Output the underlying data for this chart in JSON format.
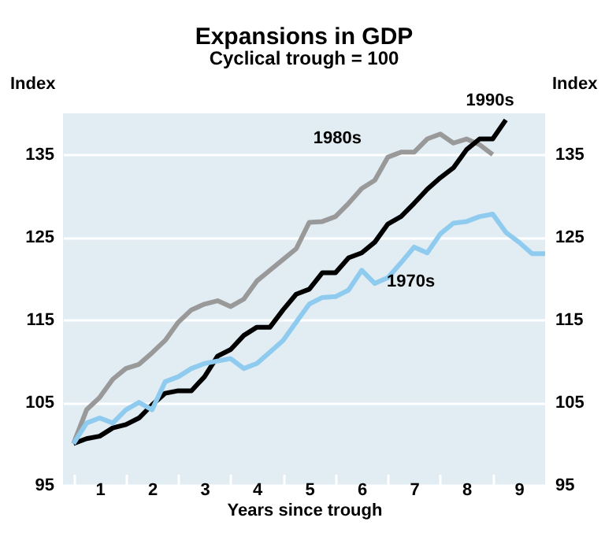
{
  "chart_data": {
    "type": "line",
    "title": "Expansions in GDP",
    "subtitle": "Cyclical trough = 100",
    "xlabel": "Years since trough",
    "ylabel": "Index",
    "y2label": "Index",
    "x": [
      0,
      0.25,
      0.5,
      0.75,
      1,
      1.25,
      1.5,
      1.75,
      2,
      2.25,
      2.5,
      2.75,
      3,
      3.25,
      3.5,
      3.75,
      4,
      4.25,
      4.5,
      4.75,
      5,
      5.25,
      5.5,
      5.75,
      6,
      6.25,
      6.5,
      6.75,
      7,
      7.25,
      7.5,
      7.75,
      8,
      8.25,
      8.5,
      8.75,
      9
    ],
    "series": [
      {
        "name": "1980s",
        "color": "#999999",
        "x": [
          0,
          0.25,
          0.5,
          0.75,
          1,
          1.25,
          1.5,
          1.75,
          2,
          2.25,
          2.5,
          2.75,
          3,
          3.25,
          3.5,
          3.75,
          4,
          4.25,
          4.5,
          4.75,
          5,
          5.25,
          5.5,
          5.75,
          6,
          6.25,
          6.5,
          6.75,
          7,
          7.25,
          7.5,
          7.75,
          8
        ],
        "values": [
          100,
          104.1,
          105.6,
          107.8,
          109.1,
          109.6,
          111,
          112.5,
          114.7,
          116.2,
          116.9,
          117.3,
          116.6,
          117.5,
          119.7,
          121,
          122.3,
          123.6,
          126.8,
          126.9,
          127.5,
          129.1,
          130.9,
          131.9,
          134.7,
          135.3,
          135.3,
          136.9,
          137.5,
          136.4,
          136.9,
          136.2,
          135
        ]
      },
      {
        "name": "1990s",
        "color": "#000000",
        "x": [
          0,
          0.25,
          0.5,
          0.75,
          1,
          1.25,
          1.5,
          1.75,
          2,
          2.25,
          2.5,
          2.75,
          3,
          3.25,
          3.5,
          3.75,
          4,
          4.25,
          4.5,
          4.75,
          5,
          5.25,
          5.5,
          5.75,
          6,
          6.25,
          6.5,
          6.75,
          7,
          7.25,
          7.5,
          7.75,
          8,
          8.25
        ],
        "values": [
          100,
          100.6,
          100.9,
          101.9,
          102.3,
          103.1,
          104.7,
          106.1,
          106.4,
          106.4,
          108.1,
          110.6,
          111.4,
          113.1,
          114.1,
          114.1,
          116.2,
          118.1,
          118.7,
          120.7,
          120.7,
          122.5,
          123.1,
          124.4,
          126.6,
          127.5,
          129.1,
          130.8,
          132.2,
          133.4,
          135.6,
          136.9,
          136.9,
          139.2
        ]
      },
      {
        "name": "1970s",
        "color": "#8ecbee",
        "values": [
          100,
          102.5,
          103.1,
          102.5,
          104.1,
          105,
          104.1,
          107.5,
          108.1,
          109.1,
          109.7,
          110,
          110.3,
          109.1,
          109.7,
          111.1,
          112.5,
          114.7,
          116.9,
          117.7,
          117.8,
          118.6,
          121,
          119.4,
          120.1,
          121.9,
          123.8,
          123.1,
          125.4,
          126.7,
          126.9,
          127.5,
          127.8,
          125.6,
          124.4,
          123,
          123
        ]
      }
    ],
    "xlim": [
      -0.2,
      9
    ],
    "xticks": [
      {
        "value": 0,
        "label": null
      },
      {
        "value": 0.5,
        "label": "1"
      },
      {
        "value": 1,
        "label": null
      },
      {
        "value": 1.5,
        "label": "2"
      },
      {
        "value": 2,
        "label": null
      },
      {
        "value": 2.5,
        "label": "3"
      },
      {
        "value": 3,
        "label": null
      },
      {
        "value": 3.5,
        "label": "4"
      },
      {
        "value": 4,
        "label": null
      },
      {
        "value": 4.5,
        "label": "5"
      },
      {
        "value": 5,
        "label": null
      },
      {
        "value": 5.5,
        "label": "6"
      },
      {
        "value": 6,
        "label": null
      },
      {
        "value": 6.5,
        "label": "7"
      },
      {
        "value": 7,
        "label": null
      },
      {
        "value": 7.5,
        "label": "8"
      },
      {
        "value": 8,
        "label": null
      },
      {
        "value": 8.5,
        "label": "9"
      }
    ],
    "ylim": [
      95,
      140
    ],
    "yticks": [
      95,
      105,
      115,
      125,
      135
    ],
    "y2lim": [
      95,
      140
    ],
    "y2ticks": [
      95,
      105,
      115,
      125,
      135
    ],
    "grid": "y",
    "legend": false,
    "line_style": "solid",
    "marker": "none"
  }
}
